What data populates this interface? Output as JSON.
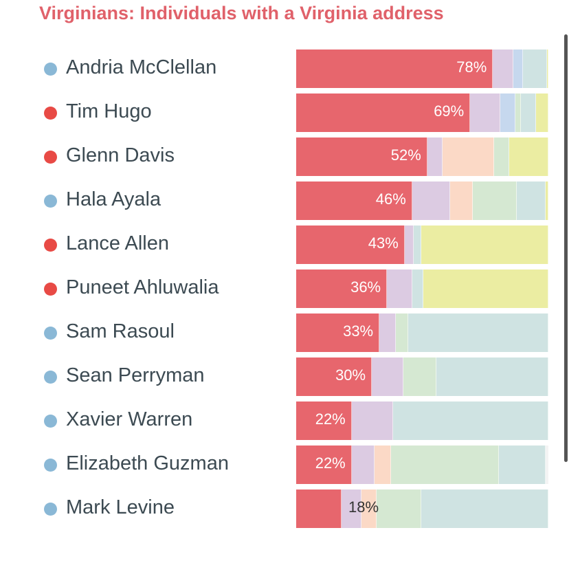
{
  "title": "Virginians: Individuals with a Virginia address",
  "party_colors": {
    "D": "#8ab8d6",
    "R": "#e84a45"
  },
  "segment_colors": [
    "#e7666d",
    "#dccbe2",
    "#c6d8ee",
    "#cde3f4",
    "#fbd9c6",
    "#d5e8d2",
    "#cfe3e2",
    "#ebeda2"
  ],
  "chart_data": {
    "type": "bar",
    "orientation": "horizontal",
    "stacked": true,
    "title": "Virginians: Individuals with a Virginia address",
    "categories": [
      "Andria McClellan",
      "Tim Hugo",
      "Glenn Davis",
      "Hala Ayala",
      "Lance Allen",
      "Puneet Ahluwalia",
      "Sam Rasoul",
      "Sean Perryman",
      "Xavier Warren",
      "Elizabeth Guzman",
      "Mark Levine"
    ],
    "labels": [
      "78%",
      "69%",
      "52%",
      "46%",
      "43%",
      "36%",
      "33%",
      "30%",
      "22%",
      "22%",
      "18%"
    ],
    "party": [
      "D",
      "R",
      "R",
      "D",
      "R",
      "R",
      "D",
      "D",
      "D",
      "D",
      "D"
    ],
    "values": [
      78,
      69,
      52,
      46,
      43,
      36,
      33,
      30,
      22,
      22,
      18
    ],
    "breakdown": [
      [
        78,
        8,
        4,
        0,
        0,
        0,
        9.5,
        0.5
      ],
      [
        69,
        12,
        6,
        0,
        0,
        2,
        6,
        5
      ],
      [
        52,
        6,
        0,
        0,
        20.5,
        6,
        0,
        15.5
      ],
      [
        46,
        15,
        0,
        0,
        9,
        17.5,
        11.5,
        1
      ],
      [
        43,
        3.5,
        0,
        0,
        0,
        0,
        3,
        50.5
      ],
      [
        36,
        10,
        0,
        0,
        0,
        0,
        4.5,
        49.5
      ],
      [
        33,
        6.5,
        0,
        0,
        0,
        5,
        55.5,
        0
      ],
      [
        30,
        12.5,
        0,
        0,
        0,
        13,
        44.5,
        0
      ],
      [
        22,
        16.5,
        0,
        0,
        0,
        0,
        61.5,
        0
      ],
      [
        22,
        9,
        0,
        0,
        6.5,
        43,
        18.5,
        0
      ],
      [
        18,
        8,
        0,
        0,
        6,
        17.5,
        50.5,
        0
      ]
    ],
    "xlim": [
      0,
      100
    ]
  }
}
